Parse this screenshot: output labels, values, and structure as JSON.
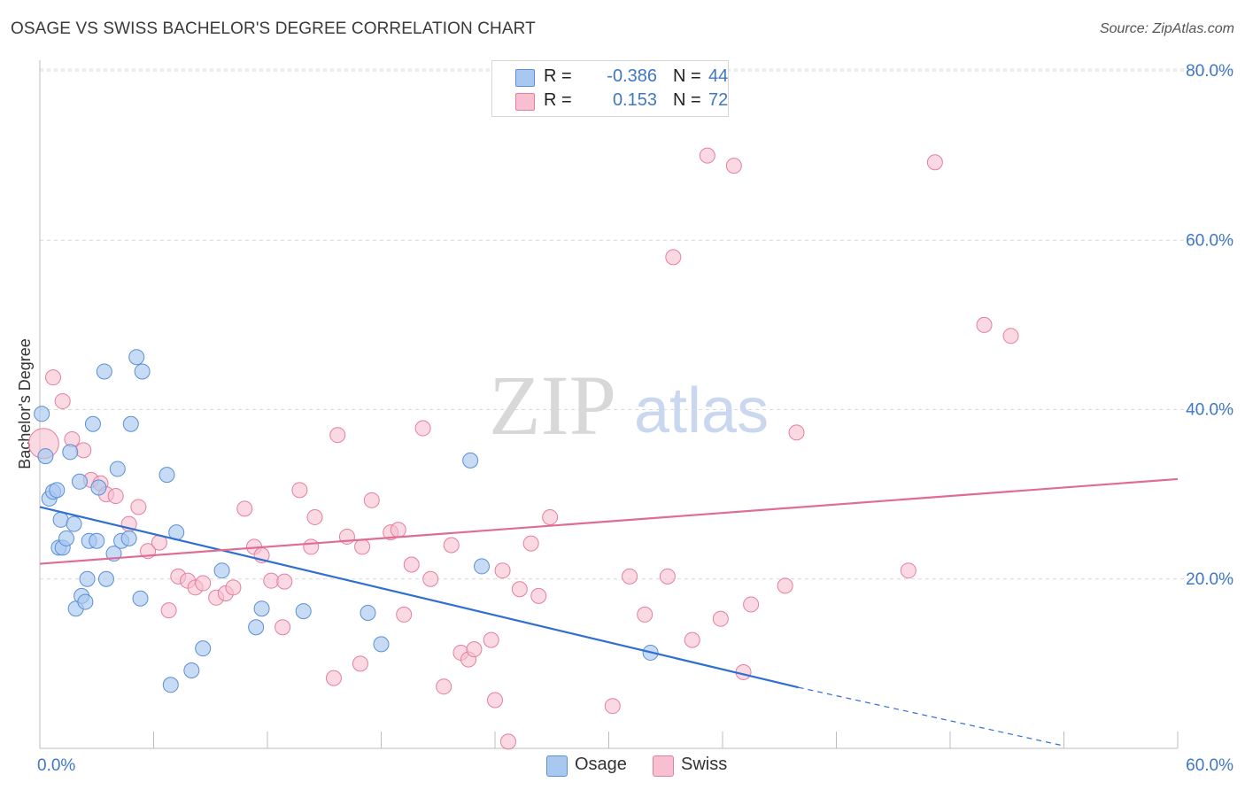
{
  "header": {
    "title": "OSAGE VS SWISS BACHELOR'S DEGREE CORRELATION CHART",
    "source": "Source: ZipAtlas.com"
  },
  "legend": {
    "rows": [
      {
        "r_label": "R =",
        "r_value": "-0.386",
        "n_label": "N =",
        "n_value": "44"
      },
      {
        "r_label": "R =",
        "r_value": "0.153",
        "n_label": "N =",
        "n_value": "72"
      }
    ]
  },
  "bottom_legend": {
    "items": [
      {
        "label": "Osage"
      },
      {
        "label": "Swiss"
      }
    ]
  },
  "watermark": {
    "zip": "ZIP",
    "atlas": "atlas"
  },
  "colors": {
    "osage_fill": "#a9c8f0",
    "osage_stroke": "#5b8fd6",
    "osage_line": "#2f6fd0",
    "swiss_fill": "#f7bfd0",
    "swiss_stroke": "#e47ea0",
    "swiss_line": "#e06c93",
    "tick_label": "#3f77c8",
    "grid": "#d9d9d9"
  },
  "chart_data": {
    "type": "scatter",
    "title": "OSAGE VS SWISS BACHELOR'S DEGREE CORRELATION CHART",
    "xlabel": "",
    "ylabel": "Bachelor's Degree",
    "xlim": [
      0,
      60
    ],
    "ylim": [
      0,
      80
    ],
    "x_tick_labels": [
      "0.0%",
      "60.0%"
    ],
    "y_ticks": [
      20,
      40,
      60,
      80
    ],
    "y_tick_labels": [
      "20.0%",
      "40.0%",
      "60.0%",
      "80.0%"
    ],
    "grid": true,
    "legend_position": "top-center",
    "series": [
      {
        "name": "Osage",
        "r": -0.386,
        "n": 44,
        "points": [
          [
            0.1,
            39.5
          ],
          [
            0.3,
            34.5
          ],
          [
            0.5,
            29.5
          ],
          [
            0.7,
            30.3
          ],
          [
            0.9,
            30.5
          ],
          [
            1.0,
            23.7
          ],
          [
            1.1,
            27.0
          ],
          [
            1.2,
            23.7
          ],
          [
            1.4,
            24.8
          ],
          [
            1.6,
            35.0
          ],
          [
            1.8,
            26.5
          ],
          [
            1.9,
            16.5
          ],
          [
            2.1,
            31.5
          ],
          [
            2.2,
            18.0
          ],
          [
            2.4,
            17.3
          ],
          [
            2.5,
            20.0
          ],
          [
            2.6,
            24.5
          ],
          [
            2.8,
            38.3
          ],
          [
            3.0,
            24.5
          ],
          [
            3.1,
            30.8
          ],
          [
            3.4,
            44.5
          ],
          [
            3.5,
            20.0
          ],
          [
            3.9,
            23.0
          ],
          [
            4.1,
            33.0
          ],
          [
            4.3,
            24.5
          ],
          [
            4.7,
            24.8
          ],
          [
            4.8,
            38.3
          ],
          [
            5.1,
            46.2
          ],
          [
            5.3,
            17.7
          ],
          [
            5.4,
            44.5
          ],
          [
            6.7,
            32.3
          ],
          [
            6.9,
            7.5
          ],
          [
            7.2,
            25.5
          ],
          [
            8.0,
            9.2
          ],
          [
            8.6,
            11.8
          ],
          [
            9.6,
            21.0
          ],
          [
            11.4,
            14.3
          ],
          [
            11.7,
            16.5
          ],
          [
            13.9,
            16.2
          ],
          [
            17.3,
            16.0
          ],
          [
            18.0,
            12.3
          ],
          [
            22.7,
            34.0
          ],
          [
            23.3,
            21.5
          ],
          [
            32.2,
            11.3
          ]
        ],
        "trend": {
          "x": [
            0,
            40
          ],
          "y": [
            28.5,
            7.2
          ],
          "dashed_to": [
            54,
            0.3
          ]
        }
      },
      {
        "name": "Swiss",
        "r": 0.153,
        "n": 72,
        "points": [
          [
            0.2,
            36.0
          ],
          [
            0.7,
            43.8
          ],
          [
            1.2,
            41.0
          ],
          [
            1.7,
            36.5
          ],
          [
            2.3,
            35.2
          ],
          [
            2.7,
            31.7
          ],
          [
            3.2,
            31.3
          ],
          [
            3.5,
            30.0
          ],
          [
            4.0,
            29.8
          ],
          [
            4.7,
            26.5
          ],
          [
            5.2,
            28.5
          ],
          [
            5.7,
            23.3
          ],
          [
            6.3,
            24.3
          ],
          [
            6.8,
            16.3
          ],
          [
            7.3,
            20.3
          ],
          [
            7.8,
            19.8
          ],
          [
            8.2,
            19.0
          ],
          [
            8.6,
            19.5
          ],
          [
            9.3,
            17.8
          ],
          [
            9.8,
            18.3
          ],
          [
            10.2,
            19.0
          ],
          [
            10.8,
            28.3
          ],
          [
            11.3,
            23.8
          ],
          [
            11.7,
            22.8
          ],
          [
            12.2,
            19.8
          ],
          [
            12.8,
            14.3
          ],
          [
            12.9,
            19.7
          ],
          [
            13.7,
            30.5
          ],
          [
            14.3,
            23.8
          ],
          [
            14.5,
            27.3
          ],
          [
            15.5,
            8.3
          ],
          [
            15.7,
            37.0
          ],
          [
            16.2,
            25.0
          ],
          [
            16.9,
            10.0
          ],
          [
            17.0,
            23.8
          ],
          [
            17.5,
            29.3
          ],
          [
            18.5,
            25.5
          ],
          [
            18.9,
            25.8
          ],
          [
            19.2,
            15.8
          ],
          [
            19.6,
            21.7
          ],
          [
            20.2,
            37.8
          ],
          [
            20.6,
            20.0
          ],
          [
            21.3,
            7.3
          ],
          [
            21.7,
            24.0
          ],
          [
            22.2,
            11.3
          ],
          [
            22.6,
            10.5
          ],
          [
            22.9,
            11.7
          ],
          [
            23.8,
            12.8
          ],
          [
            24.0,
            5.7
          ],
          [
            24.4,
            21.0
          ],
          [
            24.7,
            0.8
          ],
          [
            25.3,
            18.8
          ],
          [
            25.9,
            24.2
          ],
          [
            26.3,
            18.0
          ],
          [
            26.9,
            27.3
          ],
          [
            30.2,
            5.0
          ],
          [
            31.1,
            20.3
          ],
          [
            31.9,
            15.8
          ],
          [
            33.1,
            20.3
          ],
          [
            33.4,
            58.0
          ],
          [
            34.4,
            12.8
          ],
          [
            35.2,
            70.0
          ],
          [
            35.9,
            15.3
          ],
          [
            36.6,
            68.8
          ],
          [
            37.1,
            9.0
          ],
          [
            37.5,
            17.0
          ],
          [
            39.3,
            19.2
          ],
          [
            39.9,
            37.3
          ],
          [
            45.8,
            21.0
          ],
          [
            47.2,
            69.2
          ],
          [
            49.8,
            50.0
          ],
          [
            51.2,
            48.7
          ]
        ],
        "trend": {
          "x": [
            0,
            60
          ],
          "y": [
            21.8,
            31.8
          ]
        }
      }
    ]
  }
}
